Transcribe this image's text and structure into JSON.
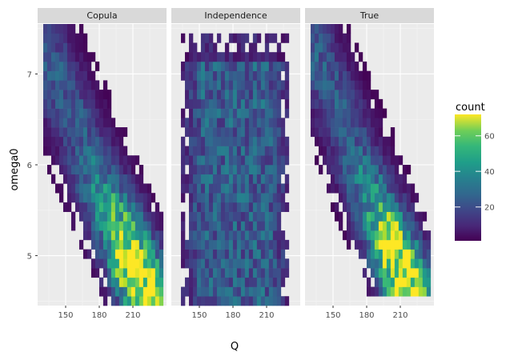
{
  "chart_data": {
    "type": "heatmap",
    "xlabel": "Q",
    "ylabel": "omega0",
    "x_ticks": [
      150,
      180,
      210
    ],
    "y_ticks": [
      5,
      6,
      7
    ],
    "xlim": [
      125,
      240
    ],
    "ylim": [
      4.45,
      7.55
    ],
    "panels": [
      {
        "label": "Copula",
        "model": "diag",
        "q_center": 175,
        "q_slope": -35,
        "q_width": 18,
        "w_min": 4.5,
        "w_max": 7.5,
        "peak": [
          205,
          4.9
        ]
      },
      {
        "label": "Independence",
        "model": "uniform",
        "q_min": 135,
        "q_max": 230,
        "w_min": 4.5,
        "w_max": 7.45
      },
      {
        "label": "True",
        "model": "diag",
        "q_center": 175,
        "q_slope": -33,
        "q_width": 17,
        "w_min": 4.55,
        "w_max": 7.5,
        "peak": [
          200,
          5.05
        ]
      }
    ],
    "legend": {
      "title": "count",
      "ticks": [
        20,
        40,
        60
      ],
      "min": 1,
      "max": 72,
      "colormap": "viridis"
    },
    "grid": true
  }
}
